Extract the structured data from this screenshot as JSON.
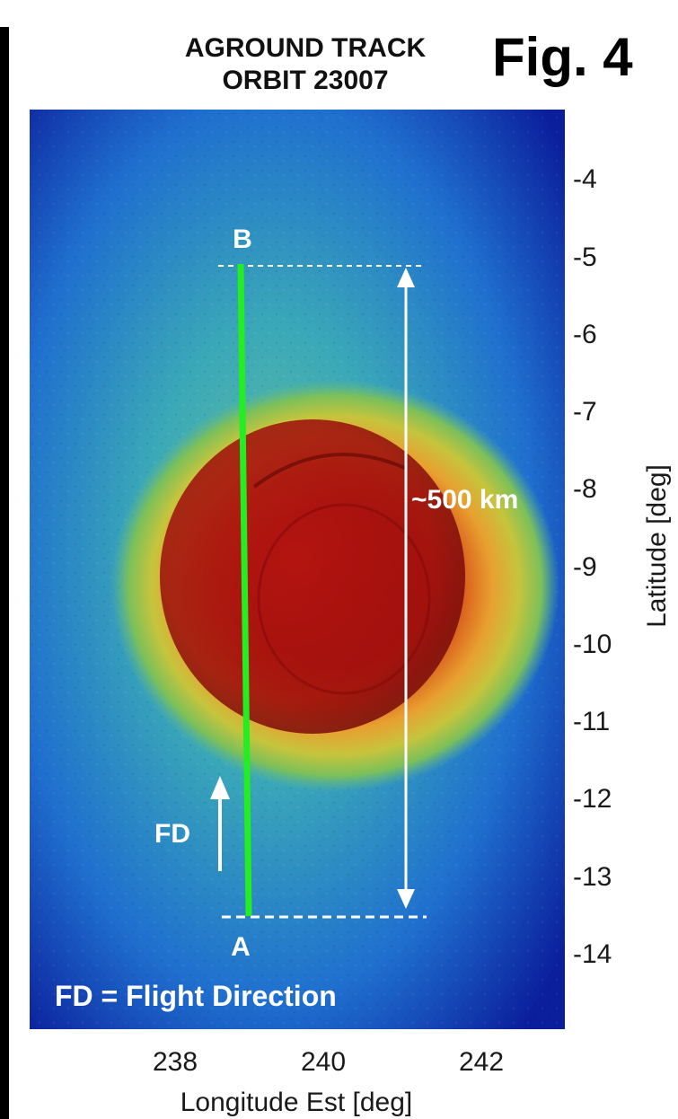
{
  "title": {
    "line1": "AGROUND TRACK",
    "line2": "ORBIT 23007"
  },
  "figure_label": "Fig. 4",
  "map": {
    "point_a": "A",
    "point_b": "B",
    "distance_label": "~500 km",
    "fd_label": "FD",
    "legend": "FD = Flight Direction",
    "track_color": "#22ee22",
    "colormap": [
      "#0a1f9e",
      "#1f7fd6",
      "#2fb5a5",
      "#9acb4a",
      "#e8c23a",
      "#d85a1e",
      "#a81212"
    ]
  },
  "axes": {
    "latitude_label": "Latitude [deg]",
    "longitude_label": "Longitude Est [deg]",
    "latitude_ticks": [
      "-4",
      "-5",
      "-6",
      "-7",
      "-8",
      "-9",
      "-10",
      "-11",
      "-12",
      "-13",
      "-14"
    ],
    "longitude_ticks": [
      "238",
      "240",
      "242"
    ]
  }
}
